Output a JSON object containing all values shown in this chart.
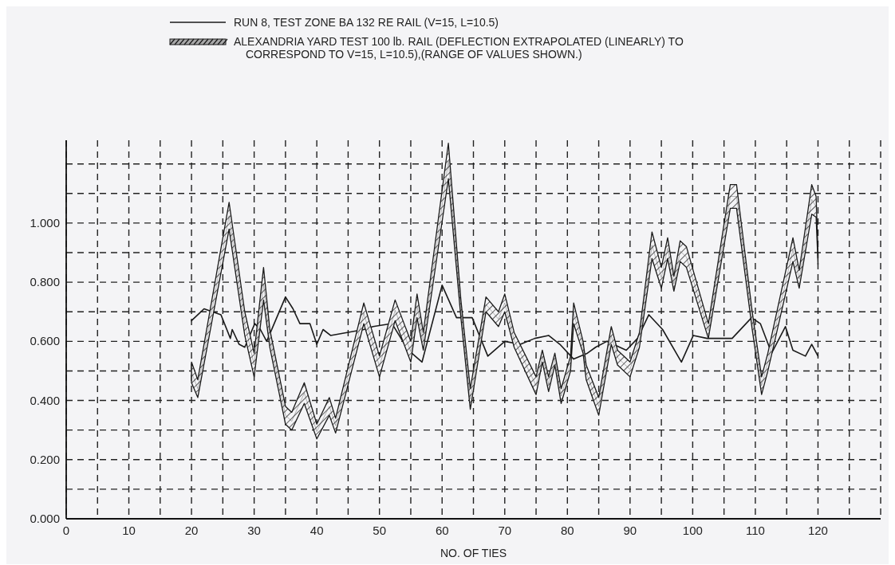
{
  "chart_data": {
    "type": "line",
    "xlabel": "NO. OF TIES",
    "xlim": [
      0,
      130
    ],
    "xticks": [
      0,
      {
        "value": 5,
        "label": null
      },
      10,
      {
        "value": 15,
        "label": null
      },
      20,
      {
        "value": 25,
        "label": null
      },
      30,
      {
        "value": 35,
        "label": null
      },
      40,
      {
        "value": 45,
        "label": null
      },
      50,
      {
        "value": 55,
        "label": null
      },
      60,
      {
        "value": 65,
        "label": null
      },
      70,
      {
        "value": 75,
        "label": null
      },
      80,
      {
        "value": 85,
        "label": null
      },
      90,
      {
        "value": 95,
        "label": null
      },
      100,
      {
        "value": 105,
        "label": null
      },
      110,
      {
        "value": 115,
        "label": null
      },
      120,
      {
        "value": 125,
        "label": null
      },
      {
        "value": 130,
        "label": null
      }
    ],
    "ylim": [
      0,
      1.28
    ],
    "yticks": [
      {
        "value": 0,
        "label": "0.000"
      },
      {
        "value": 0.1,
        "label": null
      },
      {
        "value": 0.2,
        "label": "0.200"
      },
      {
        "value": 0.3,
        "label": null
      },
      {
        "value": 0.4,
        "label": "0.400"
      },
      {
        "value": 0.5,
        "label": null
      },
      {
        "value": 0.6,
        "label": "0.600"
      },
      {
        "value": 0.7,
        "label": null
      },
      {
        "value": 0.8,
        "label": "0.800"
      },
      {
        "value": 0.9,
        "label": null
      },
      {
        "value": 1.0,
        "label": "1.000"
      },
      {
        "value": 1.1,
        "label": null
      },
      {
        "value": 1.2,
        "label": null
      }
    ],
    "grid": true,
    "legend": "top",
    "line_style": "solid",
    "series": [
      {
        "name": "RUN 8, TEST ZONE BA 132 RE RAIL (V=15, L=10.5)",
        "color": "#1a1a1a",
        "x": [
          20,
          22,
          24.7,
          26.2,
          26.5,
          27.6,
          28.5,
          30.1,
          31,
          32,
          35,
          36.2,
          37.3,
          38.9,
          40,
          41,
          42.2,
          47.5,
          49,
          52,
          54.6,
          56.8,
          60,
          62.3,
          64.8,
          67.3,
          70,
          72.5,
          74.8,
          77,
          78.8,
          81,
          83.2,
          84.5,
          86.3,
          89.4,
          91.2,
          93,
          95.2,
          98.2,
          100.1,
          102.3,
          106.3,
          109.4,
          110.8,
          112.6,
          114.8,
          116,
          118,
          119,
          120
        ],
        "values": [
          0.67,
          0.71,
          0.69,
          0.61,
          0.64,
          0.59,
          0.58,
          0.66,
          0.64,
          0.6,
          0.75,
          0.71,
          0.66,
          0.66,
          0.59,
          0.64,
          0.62,
          0.64,
          0.65,
          0.66,
          0.57,
          0.53,
          0.79,
          0.68,
          0.68,
          0.55,
          0.6,
          0.59,
          0.61,
          0.62,
          0.59,
          0.54,
          0.56,
          0.58,
          0.6,
          0.57,
          0.61,
          0.69,
          0.64,
          0.53,
          0.62,
          0.61,
          0.61,
          0.68,
          0.66,
          0.56,
          0.65,
          0.57,
          0.55,
          0.59,
          0.55
        ]
      },
      {
        "name": "ALEXANDRIA YARD TEST 100 lb. RAIL (DEFLECTION EXTRAPOLATED (LINEARLY) TO CORRESPOND TO V=15, L=10.5),(RANGE OF VALUES SHOWN.)",
        "color": "#1a1a1a",
        "x": [
          20,
          21,
          26,
          28.5,
          30,
          31.5,
          32.5,
          35,
          36,
          38,
          40,
          42,
          43,
          47.5,
          50,
          52.5,
          55,
          56,
          57,
          61,
          63,
          64.5,
          67,
          69,
          70,
          71.5,
          75,
          76,
          77,
          78,
          79,
          80.5,
          81,
          82.5,
          83,
          85,
          87,
          88,
          90,
          91.5,
          93.5,
          95,
          96,
          97,
          98,
          99,
          102.5,
          106,
          107,
          109.5,
          111,
          112,
          116,
          117,
          119,
          119.7,
          120
        ],
        "values": [
          0.495,
          0.44,
          1.025,
          0.66,
          0.52,
          0.795,
          0.61,
          0.35,
          0.33,
          0.425,
          0.295,
          0.38,
          0.315,
          0.695,
          0.515,
          0.705,
          0.565,
          0.72,
          0.6,
          1.21,
          0.71,
          0.405,
          0.725,
          0.675,
          0.73,
          0.605,
          0.45,
          0.55,
          0.455,
          0.54,
          0.415,
          0.525,
          0.695,
          0.58,
          0.495,
          0.38,
          0.62,
          0.545,
          0.505,
          0.605,
          0.925,
          0.815,
          0.915,
          0.795,
          0.905,
          0.885,
          0.635,
          1.09,
          1.09,
          0.67,
          0.45,
          0.53,
          0.91,
          0.81,
          1.08,
          1.055,
          0.88
        ],
        "lower": [
          0.46,
          0.41,
          0.98,
          0.62,
          0.48,
          0.74,
          0.58,
          0.32,
          0.3,
          0.39,
          0.27,
          0.35,
          0.29,
          0.66,
          0.48,
          0.67,
          0.53,
          0.68,
          0.57,
          1.15,
          0.68,
          0.37,
          0.7,
          0.65,
          0.7,
          0.58,
          0.42,
          0.53,
          0.43,
          0.52,
          0.39,
          0.5,
          0.66,
          0.56,
          0.47,
          0.35,
          0.59,
          0.52,
          0.48,
          0.58,
          0.88,
          0.78,
          0.88,
          0.77,
          0.87,
          0.85,
          0.61,
          1.05,
          1.05,
          0.64,
          0.42,
          0.5,
          0.87,
          0.78,
          1.03,
          1.02,
          0.86
        ],
        "upper": [
          0.53,
          0.47,
          1.07,
          0.7,
          0.56,
          0.85,
          0.64,
          0.38,
          0.36,
          0.46,
          0.32,
          0.41,
          0.34,
          0.73,
          0.55,
          0.74,
          0.6,
          0.76,
          0.63,
          1.27,
          0.74,
          0.44,
          0.75,
          0.7,
          0.76,
          0.63,
          0.48,
          0.57,
          0.48,
          0.56,
          0.44,
          0.55,
          0.73,
          0.6,
          0.52,
          0.41,
          0.65,
          0.57,
          0.53,
          0.63,
          0.97,
          0.85,
          0.95,
          0.82,
          0.94,
          0.92,
          0.66,
          1.13,
          1.13,
          0.7,
          0.48,
          0.56,
          0.95,
          0.84,
          1.13,
          1.09,
          0.9
        ]
      }
    ]
  }
}
